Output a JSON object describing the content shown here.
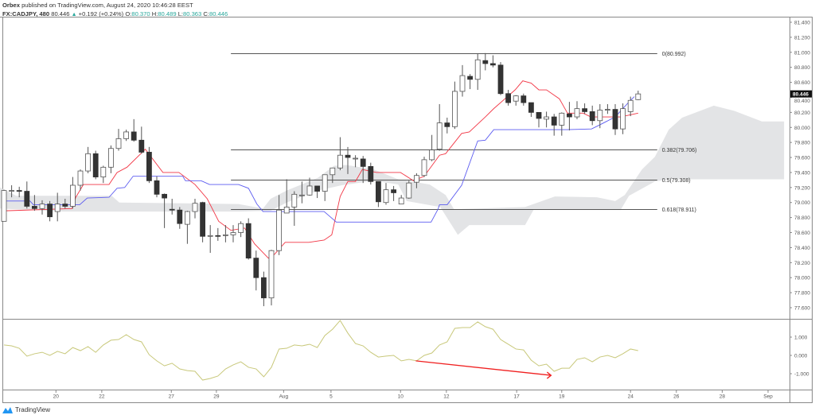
{
  "header": {
    "publisher": "Orbex",
    "published_text": "published on TradingView.com, August 24, 2020 10:46:28 EEST",
    "symbol": "FX:CADJPY, 480",
    "last": "80.446",
    "change": "+0.192 (+0.24%)",
    "o_label": "O:",
    "o": "80.370",
    "h_label": "H:",
    "h": "80.489",
    "l_label": "L:",
    "l": "80.363",
    "c_label": "C:",
    "c": "80.446"
  },
  "footer": {
    "brand": "TradingView"
  },
  "colors": {
    "tenkan": "#f23645",
    "kijun": "#5b5bf0",
    "cloud": "#e3e4e6",
    "oscillator": "#c8c87a",
    "arrow": "#f02020",
    "up_body": "#ffffff",
    "down_body": "#333333",
    "accent": "#26a69a"
  },
  "chart_data": [
    {
      "type": "candlestick",
      "price_ticks": [
        "81.400",
        "81.200",
        "81.000",
        "80.800",
        "80.600",
        "80.400",
        "80.200",
        "80.000",
        "79.800",
        "79.600",
        "79.400",
        "79.200",
        "79.000",
        "78.800",
        "78.600",
        "78.400",
        "78.200",
        "78.000",
        "77.800",
        "77.600"
      ],
      "ylim": [
        77.6,
        81.4
      ],
      "last_price_label": "80.446",
      "x_ticks": [
        {
          "label": "20",
          "bar": 7.8
        },
        {
          "label": "22",
          "bar": 13.8
        },
        {
          "label": "27",
          "bar": 22.9
        },
        {
          "label": "29",
          "bar": 28.8
        },
        {
          "label": "Aug",
          "bar": 37.6
        },
        {
          "label": "5",
          "bar": 43.8
        },
        {
          "label": "10",
          "bar": 52.9
        },
        {
          "label": "12",
          "bar": 58.9
        },
        {
          "label": "17",
          "bar": 68.1
        },
        {
          "label": "19",
          "bar": 74
        },
        {
          "label": "24",
          "bar": 83
        },
        {
          "label": "26",
          "bar": 89
        },
        {
          "label": "28",
          "bar": 95
        },
        {
          "label": "Sep",
          "bar": 101
        }
      ],
      "candles_ohlc": [
        [
          78.75,
          79.17,
          78.75,
          79.16
        ],
        [
          79.16,
          79.23,
          79.07,
          79.16
        ],
        [
          79.16,
          79.21,
          79.07,
          79.15
        ],
        [
          79.15,
          79.28,
          78.92,
          78.95
        ],
        [
          78.95,
          79.1,
          78.89,
          78.92
        ],
        [
          78.92,
          79.03,
          78.84,
          78.98
        ],
        [
          78.98,
          79.02,
          78.75,
          78.81
        ],
        [
          78.88,
          79.13,
          78.75,
          78.98
        ],
        [
          78.98,
          79.05,
          78.92,
          78.95
        ],
        [
          78.95,
          79.34,
          78.92,
          79.23
        ],
        [
          79.23,
          79.44,
          79.16,
          79.42
        ],
        [
          79.42,
          79.74,
          79.39,
          79.65
        ],
        [
          79.65,
          79.69,
          79.31,
          79.34
        ],
        [
          79.34,
          79.49,
          79.26,
          79.47
        ],
        [
          79.47,
          79.76,
          79.39,
          79.72
        ],
        [
          79.72,
          79.98,
          79.69,
          79.85
        ],
        [
          79.85,
          79.97,
          79.82,
          79.94
        ],
        [
          79.94,
          80.11,
          79.81,
          79.83
        ],
        [
          79.83,
          80.01,
          79.65,
          79.67
        ],
        [
          79.67,
          79.74,
          79.26,
          79.29
        ],
        [
          79.29,
          79.35,
          79.07,
          79.11
        ],
        [
          79.11,
          79.12,
          78.66,
          79.06
        ],
        [
          78.91,
          79.05,
          78.84,
          78.9
        ],
        [
          78.9,
          78.94,
          78.65,
          78.72
        ],
        [
          78.71,
          78.89,
          78.45,
          78.88
        ],
        [
          78.88,
          79.05,
          78.79,
          78.99
        ],
        [
          79.0,
          79.01,
          78.47,
          78.55
        ],
        [
          78.55,
          78.7,
          78.33,
          78.56
        ],
        [
          78.56,
          78.66,
          78.49,
          78.55
        ],
        [
          78.56,
          78.7,
          78.47,
          78.57
        ],
        [
          78.57,
          78.7,
          78.47,
          78.6
        ],
        [
          78.6,
          78.75,
          78.54,
          78.72
        ],
        [
          78.72,
          78.79,
          78.24,
          78.26
        ],
        [
          78.26,
          78.36,
          77.83,
          78.0
        ],
        [
          78.0,
          78.08,
          77.62,
          77.73
        ],
        [
          77.73,
          78.37,
          77.63,
          78.36
        ],
        [
          78.36,
          79.1,
          78.3,
          78.9
        ],
        [
          78.86,
          79.31,
          78.86,
          78.94
        ],
        [
          78.94,
          79.15,
          78.69,
          79.11
        ],
        [
          79.1,
          79.28,
          78.99,
          79.1
        ],
        [
          79.1,
          79.33,
          79.09,
          79.22
        ],
        [
          79.22,
          79.22,
          79.06,
          79.15
        ],
        [
          79.15,
          79.37,
          79.02,
          79.37
        ],
        [
          79.37,
          79.46,
          79.26,
          79.46
        ],
        [
          79.46,
          79.87,
          79.43,
          79.63
        ],
        [
          79.63,
          79.74,
          79.38,
          79.6
        ],
        [
          79.59,
          79.63,
          79.47,
          79.59
        ],
        [
          79.58,
          79.62,
          79.26,
          79.48
        ],
        [
          79.48,
          79.53,
          79.24,
          79.28
        ],
        [
          79.28,
          79.28,
          78.94,
          79.01
        ],
        [
          79.0,
          79.26,
          78.97,
          79.17
        ],
        [
          79.17,
          79.22,
          79.02,
          79.13
        ],
        [
          78.98,
          79.1,
          78.98,
          79.06
        ],
        [
          79.06,
          79.29,
          79.05,
          79.26
        ],
        [
          79.27,
          79.39,
          79.19,
          79.36
        ],
        [
          79.36,
          79.61,
          79.34,
          79.57
        ],
        [
          79.57,
          79.9,
          79.55,
          79.7
        ],
        [
          79.71,
          80.31,
          79.69,
          80.06
        ],
        [
          80.06,
          80.13,
          79.92,
          80.01
        ],
        [
          80.01,
          80.61,
          79.98,
          80.48
        ],
        [
          80.48,
          80.83,
          80.41,
          80.69
        ],
        [
          80.68,
          80.71,
          80.51,
          80.64
        ],
        [
          80.64,
          80.98,
          80.5,
          80.9
        ],
        [
          80.89,
          80.99,
          80.76,
          80.85
        ],
        [
          80.85,
          80.96,
          80.8,
          80.83
        ],
        [
          80.83,
          80.87,
          80.43,
          80.45
        ],
        [
          80.45,
          80.5,
          80.29,
          80.33
        ],
        [
          80.35,
          80.43,
          80.29,
          80.42
        ],
        [
          80.42,
          80.45,
          80.29,
          80.33
        ],
        [
          80.33,
          80.33,
          80.14,
          80.2
        ],
        [
          80.2,
          80.2,
          80.0,
          80.12
        ],
        [
          80.11,
          80.21,
          80.0,
          80.14
        ],
        [
          80.14,
          80.18,
          79.89,
          80.03
        ],
        [
          80.03,
          80.2,
          79.89,
          80.19
        ],
        [
          80.18,
          80.34,
          79.96,
          80.14
        ],
        [
          80.14,
          80.35,
          80.11,
          80.25
        ],
        [
          80.25,
          80.32,
          80.18,
          80.21
        ],
        [
          80.21,
          80.29,
          80.03,
          80.09
        ],
        [
          80.09,
          80.31,
          79.99,
          80.23
        ],
        [
          80.23,
          80.31,
          80.18,
          80.24
        ],
        [
          80.24,
          80.31,
          79.9,
          79.98
        ],
        [
          79.98,
          80.32,
          79.91,
          80.25
        ],
        [
          80.21,
          80.41,
          80.15,
          80.36
        ],
        [
          80.37,
          80.489,
          80.363,
          80.446
        ]
      ],
      "tenkan": [
        [
          1.2,
          78.89
        ],
        [
          9.9,
          78.92
        ],
        [
          10.4,
          79.07
        ],
        [
          11.4,
          79.24
        ],
        [
          14.75,
          79.24
        ],
        [
          15.8,
          79.4
        ],
        [
          17.1,
          79.47
        ],
        [
          19.5,
          79.71
        ],
        [
          21.8,
          79.4
        ],
        [
          23.9,
          79.4
        ],
        [
          26,
          79.24
        ],
        [
          27.6,
          79.05
        ],
        [
          29.1,
          78.75
        ],
        [
          30.7,
          78.63
        ],
        [
          32.5,
          78.66
        ],
        [
          33.8,
          78.45
        ],
        [
          35.6,
          78.26
        ],
        [
          36.4,
          78.31
        ],
        [
          37.8,
          78.47
        ],
        [
          40.9,
          78.47
        ],
        [
          42.9,
          78.5
        ],
        [
          43.9,
          78.57
        ],
        [
          45,
          79.08
        ],
        [
          46,
          79.28
        ],
        [
          47,
          79.28
        ],
        [
          47.9,
          79.44
        ],
        [
          49.75,
          79.4
        ],
        [
          52.9,
          79.4
        ],
        [
          54.6,
          79.29
        ],
        [
          56,
          79.35
        ],
        [
          58,
          79.63
        ],
        [
          58.8,
          79.65
        ],
        [
          60.9,
          79.92
        ],
        [
          61.9,
          79.94
        ],
        [
          64,
          80.14
        ],
        [
          65.1,
          80.25
        ],
        [
          67.9,
          80.5
        ],
        [
          68.9,
          80.62
        ],
        [
          70,
          80.59
        ],
        [
          71,
          80.5
        ],
        [
          72,
          80.5
        ],
        [
          73.7,
          80.38
        ],
        [
          74.75,
          80.19
        ],
        [
          76.8,
          80.19
        ],
        [
          77.8,
          80.14
        ],
        [
          81.7,
          80.14
        ],
        [
          84,
          80.19
        ]
      ],
      "kijun": [
        [
          1.2,
          79.02
        ],
        [
          4.4,
          79.02
        ],
        [
          4.85,
          78.97
        ],
        [
          10.9,
          78.97
        ],
        [
          11.9,
          79.06
        ],
        [
          14.75,
          79.07
        ],
        [
          15.8,
          79.19
        ],
        [
          16.8,
          79.2
        ],
        [
          17.9,
          79.35
        ],
        [
          24.4,
          79.35
        ],
        [
          24.75,
          79.29
        ],
        [
          26.8,
          79.29
        ],
        [
          27.9,
          79.24
        ],
        [
          31.7,
          79.24
        ],
        [
          33,
          79.19
        ],
        [
          34.1,
          78.98
        ],
        [
          34.9,
          78.88
        ],
        [
          42.9,
          78.88
        ],
        [
          44.5,
          78.74
        ],
        [
          56.9,
          78.74
        ],
        [
          57.8,
          78.91
        ],
        [
          58,
          78.97
        ],
        [
          59,
          78.97
        ],
        [
          60.9,
          79.23
        ],
        [
          63,
          79.82
        ],
        [
          64,
          79.83
        ],
        [
          65.1,
          79.97
        ],
        [
          74.75,
          79.97
        ],
        [
          77.9,
          79.98
        ],
        [
          78.9,
          80.03
        ],
        [
          81,
          80.14
        ],
        [
          82.8,
          80.34
        ],
        [
          83.5,
          80.41
        ]
      ],
      "cloud_upper": [
        [
          0.5,
          79.2
        ],
        [
          2.6,
          79.09
        ],
        [
          15.1,
          79.09
        ],
        [
          16.1,
          79.0
        ],
        [
          31.7,
          78.98
        ],
        [
          34.9,
          78.92
        ],
        [
          35.9,
          79.05
        ],
        [
          38,
          79.16
        ],
        [
          42.1,
          79.33
        ],
        [
          44.2,
          79.49
        ],
        [
          45.8,
          79.5
        ],
        [
          49.4,
          79.44
        ],
        [
          52.6,
          79.31
        ],
        [
          56.7,
          79.24
        ],
        [
          58.8,
          79.1
        ],
        [
          59.9,
          78.91
        ],
        [
          69.2,
          78.94
        ],
        [
          73.1,
          79.08
        ],
        [
          78.6,
          79.07
        ],
        [
          81,
          79.02
        ],
        [
          82.25,
          79.1
        ],
        [
          84.5,
          79.44
        ],
        [
          86.2,
          79.61
        ],
        [
          88,
          79.97
        ],
        [
          89.75,
          80.13
        ],
        [
          93.9,
          80.29
        ],
        [
          96.6,
          80.22
        ],
        [
          100.2,
          80.08
        ],
        [
          103.1,
          80.08
        ]
      ],
      "cloud_lower": [
        [
          0.5,
          78.92
        ],
        [
          8.8,
          78.88
        ],
        [
          31.7,
          78.88
        ],
        [
          35.9,
          78.89
        ],
        [
          38,
          79.0
        ],
        [
          42.1,
          79.16
        ],
        [
          45.2,
          79.23
        ],
        [
          49.4,
          79.29
        ],
        [
          52.6,
          79.24
        ],
        [
          53.7,
          79.02
        ],
        [
          58.1,
          78.94
        ],
        [
          60.4,
          78.57
        ],
        [
          61.9,
          78.7
        ],
        [
          69.2,
          78.7
        ],
        [
          70.3,
          78.9
        ],
        [
          81.7,
          78.9
        ],
        [
          82.8,
          79.09
        ],
        [
          86.2,
          79.28
        ],
        [
          88,
          79.31
        ],
        [
          103.1,
          79.31
        ]
      ],
      "fibonacci": {
        "start_bar": 30.7,
        "end_bar": 86.5,
        "levels": [
          {
            "price": 80.992,
            "label": "0(80.992)"
          },
          {
            "price": 79.706,
            "label": "0.382(79.706)"
          },
          {
            "price": 79.308,
            "label": "0.5(79.308)"
          },
          {
            "price": 78.911,
            "label": "0.618(78.911)"
          }
        ]
      }
    },
    {
      "type": "line",
      "pane": "oscillator",
      "y_ticks": [
        "1.000",
        "0.000",
        "-1.000"
      ],
      "ylim": [
        -1.5,
        2.0
      ],
      "values": [
        0.57,
        0.52,
        0.39,
        -0.04,
        0.09,
        0.17,
        0.0,
        0.22,
        0.09,
        0.43,
        0.26,
        0.48,
        0.17,
        0.57,
        0.83,
        0.87,
        1.13,
        0.87,
        0.74,
        0.04,
        -0.3,
        -0.57,
        -0.43,
        -0.74,
        -0.83,
        -0.87,
        -1.35,
        -1.26,
        -1.13,
        -0.74,
        -0.52,
        -0.35,
        -0.65,
        -0.74,
        -1.17,
        -0.65,
        0.35,
        0.39,
        0.57,
        0.52,
        0.61,
        0.43,
        1.09,
        1.43,
        1.91,
        1.22,
        0.65,
        0.52,
        0.17,
        -0.09,
        -0.04,
        0.0,
        -0.3,
        -0.22,
        -0.3,
        0.0,
        0.13,
        0.57,
        0.74,
        1.48,
        1.52,
        1.52,
        1.83,
        1.57,
        1.43,
        0.87,
        0.61,
        0.35,
        0.3,
        -0.26,
        -0.57,
        -0.48,
        -0.87,
        -0.7,
        -0.7,
        -0.22,
        -0.13,
        -0.35,
        -0.09,
        0.0,
        -0.13,
        0.09,
        0.35,
        0.26
      ],
      "arrow": {
        "from": [
          54.9,
          -0.3
        ],
        "to": [
          72.6,
          -1.09
        ]
      }
    }
  ]
}
